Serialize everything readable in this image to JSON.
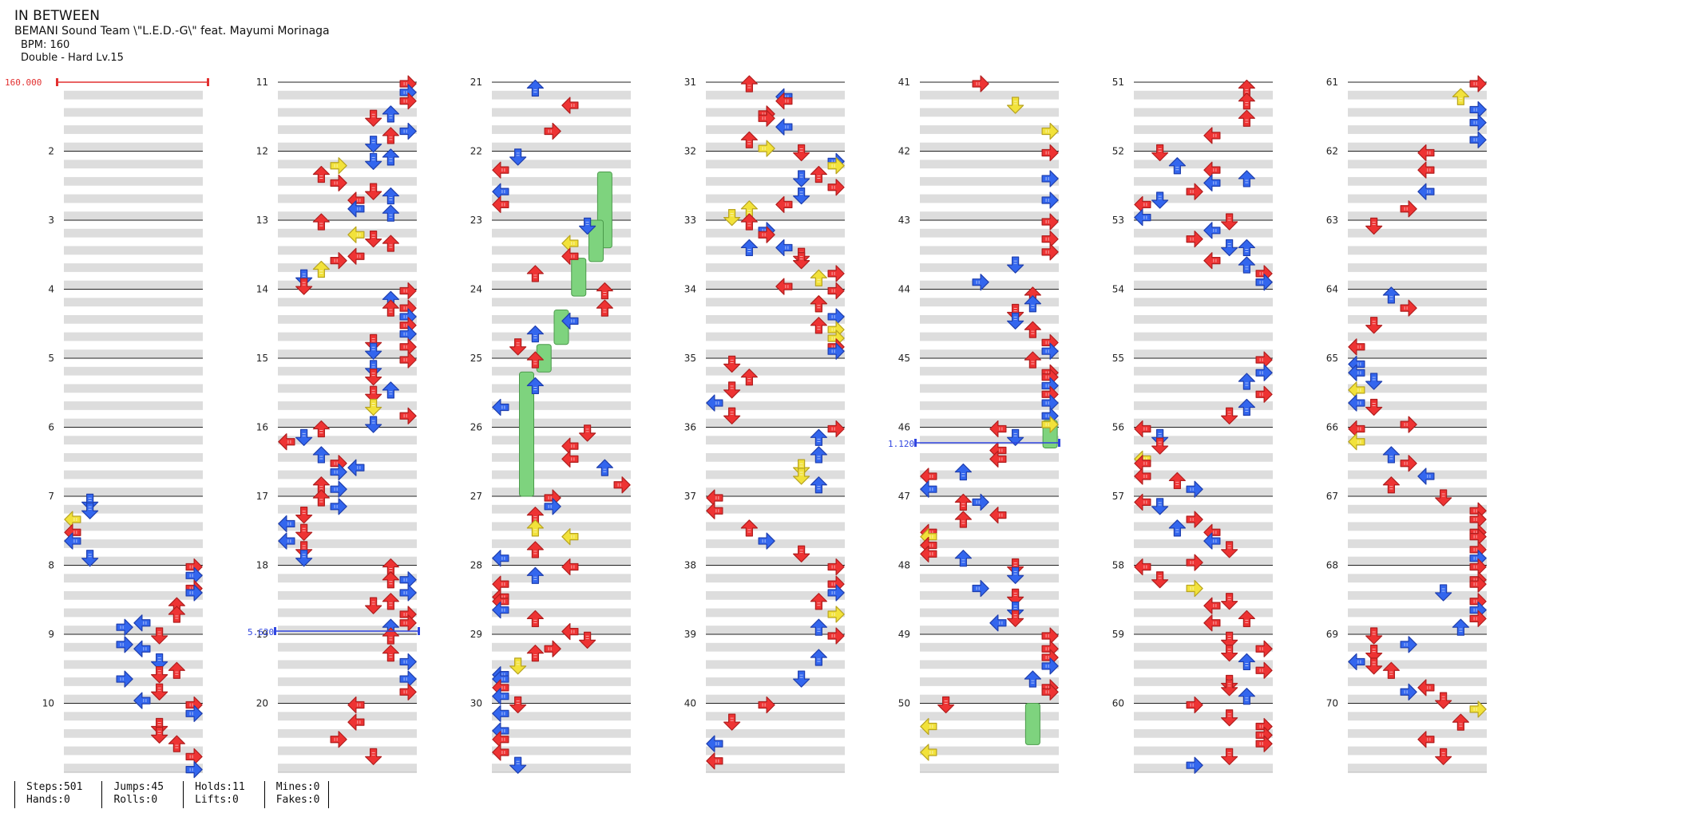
{
  "song": {
    "title": "IN BETWEEN",
    "artist": "BEMANI Sound Team \\\"L.E.D.-G\\\" feat. Mayumi Morinaga",
    "bpm_label": "BPM: 160",
    "difficulty_label": "Double - Hard Lv.15"
  },
  "markers": {
    "start_bpm": "160.000",
    "speed_1": "5.620",
    "speed_2": "1.120"
  },
  "measure_labels": [
    "2",
    "3",
    "4",
    "5",
    "6",
    "7",
    "8",
    "9",
    "10",
    "11",
    "12",
    "13",
    "14",
    "15",
    "16",
    "17",
    "18",
    "19",
    "20",
    "21",
    "22",
    "23",
    "24",
    "25",
    "26",
    "27",
    "28",
    "29",
    "30",
    "31",
    "32",
    "33",
    "34",
    "35",
    "36",
    "37",
    "38",
    "39",
    "40",
    "41",
    "42",
    "43",
    "44",
    "45",
    "46",
    "47",
    "48",
    "49",
    "50",
    "51",
    "52",
    "53",
    "54",
    "55",
    "56",
    "57",
    "58",
    "59",
    "60",
    "61",
    "62",
    "63",
    "64",
    "65",
    "66",
    "67",
    "68",
    "69",
    "70"
  ],
  "stats": {
    "steps": "Steps:501",
    "hands": "Hands:0",
    "jumps": "Jumps:45",
    "rolls": "Rolls:0",
    "holds": "Holds:11",
    "lifts": "Lifts:0",
    "mines": "Mines:0",
    "fakes": "Fakes:0"
  },
  "colors": {
    "quarter": "#ee3333",
    "eighth": "#3366ee",
    "sixteenth": "#f2e23a",
    "hold": "#7ed37e",
    "stripe": "#dddddd"
  }
}
